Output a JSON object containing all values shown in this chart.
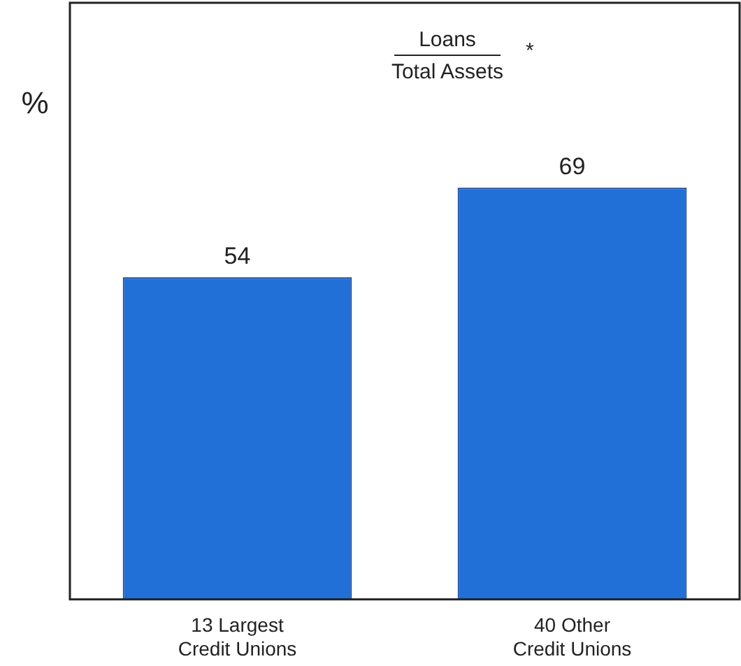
{
  "chart_data": {
    "type": "bar",
    "title": "Loans",
    "subtitle": "Total Assets",
    "annotations": [
      "*"
    ],
    "ylabel": "%",
    "categories": [
      "13 Largest Credit Unions",
      "40 Other Credit Unions"
    ],
    "values": [
      54,
      69
    ],
    "color": "#2070d8",
    "ylim": [
      0,
      100
    ],
    "data_labels": true,
    "grid": false,
    "legend": false,
    "tick_labels": "x"
  }
}
